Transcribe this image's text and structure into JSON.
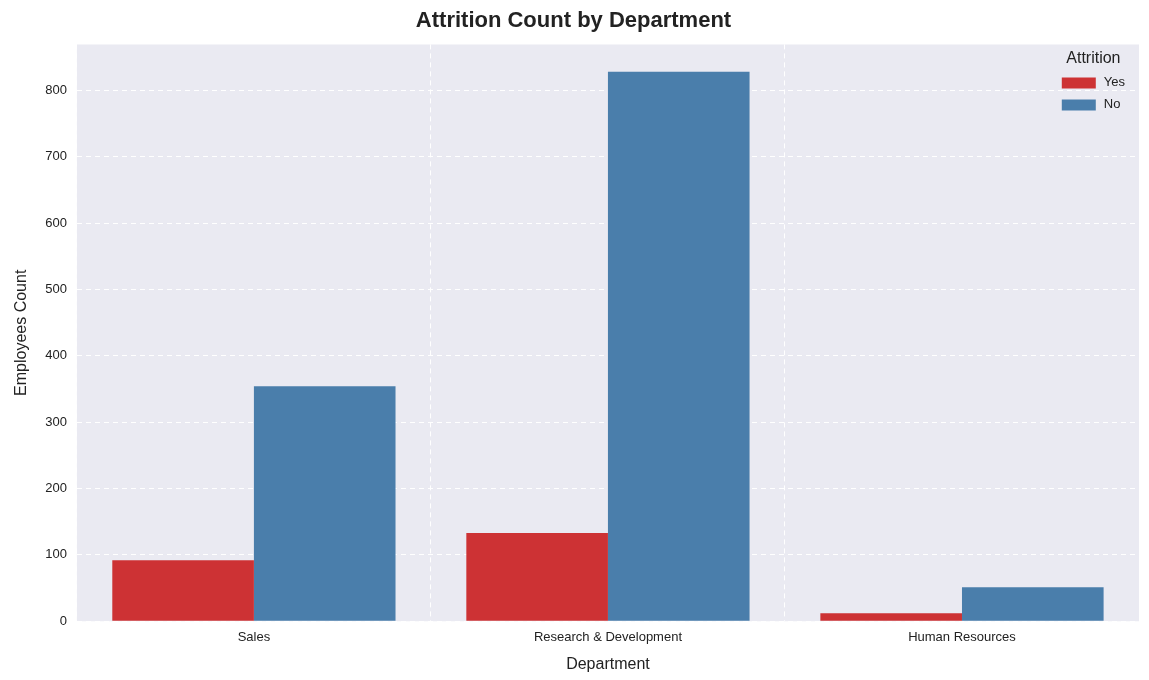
{
  "chart_data": {
    "type": "bar",
    "title": "Attrition Count by Department",
    "xlabel": "Department",
    "ylabel": "Employees Count",
    "legend_title": "Attrition",
    "categories": [
      "Sales",
      "Research & Development",
      "Human Resources"
    ],
    "series": [
      {
        "name": "Yes",
        "color": "#cd3234",
        "values": [
          92,
          133,
          12
        ]
      },
      {
        "name": "No",
        "color": "#4a7eab",
        "values": [
          354,
          828,
          51
        ]
      }
    ],
    "ylim": [
      0,
      869.4
    ],
    "yticks": [
      0,
      100,
      200,
      300,
      400,
      500,
      600,
      700,
      800
    ],
    "grid": true,
    "legend": "top right"
  }
}
